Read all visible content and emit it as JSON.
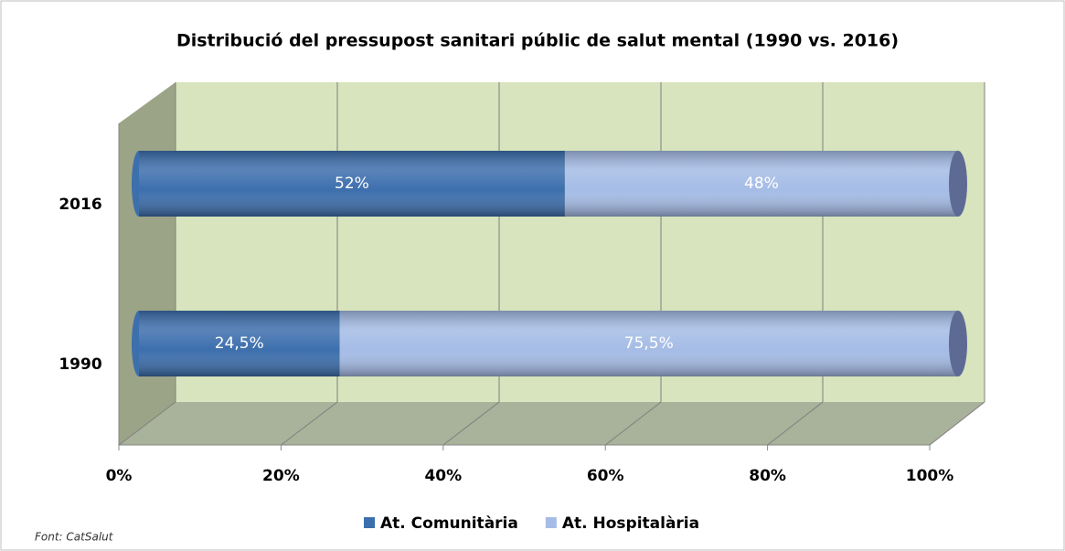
{
  "chart_data": {
    "type": "bar3d_stacked_horizontal",
    "title": "Distribució del pressupost sanitari públic de salut mental (1990 vs. 2016)",
    "categories": [
      "2016",
      "1990"
    ],
    "series": [
      {
        "name": "At. Comunitària",
        "color": "#3d6fad",
        "values": [
          52,
          24.5
        ],
        "value_labels": [
          "52%",
          "24,5%"
        ]
      },
      {
        "name": "At. Hospitalària",
        "color": "#a5bce6",
        "values": [
          48,
          75.5
        ],
        "value_labels": [
          "48%",
          "75,5%"
        ]
      }
    ],
    "xlim": [
      0,
      100
    ],
    "xticks": [
      {
        "value": 0,
        "label": "0%"
      },
      {
        "value": 20,
        "label": "20%"
      },
      {
        "value": 40,
        "label": "40%"
      },
      {
        "value": 60,
        "label": "60%"
      },
      {
        "value": 80,
        "label": "80%"
      },
      {
        "value": 100,
        "label": "100%"
      }
    ],
    "grid": true,
    "legend": "bottom",
    "source": "Font: CatSalut"
  }
}
